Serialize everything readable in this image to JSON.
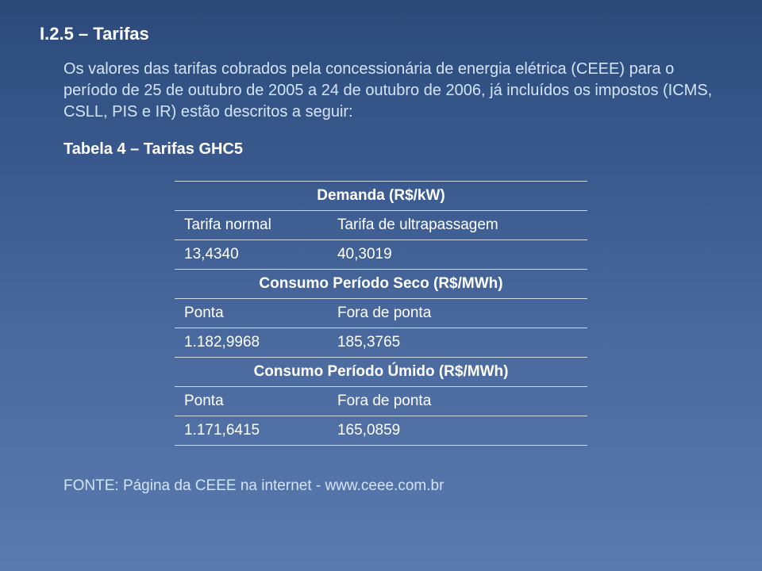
{
  "heading": "I.2.5 – Tarifas",
  "paragraph": "Os valores das tarifas cobrados pela concessionária de energia elétrica (CEEE) para o período de 25 de outubro de 2005 a 24 de outubro de 2006, já incluídos os impostos (ICMS, CSLL, PIS e IR) estão descritos a seguir:",
  "table_caption": "Tabela 4 – Tarifas GHC5",
  "sections": {
    "demanda": {
      "title": "Demanda (R$/kW)",
      "left_label": "Tarifa normal",
      "right_label": "Tarifa de ultrapassagem",
      "left_value": "13,4340",
      "right_value": "40,3019"
    },
    "seco": {
      "title": "Consumo Período Seco (R$/MWh)",
      "left_label": "Ponta",
      "right_label": "Fora de ponta",
      "left_value": "1.182,9968",
      "right_value": "185,3765"
    },
    "umido": {
      "title": "Consumo Período Úmido (R$/MWh)",
      "left_label": "Ponta",
      "right_label": "Fora de ponta",
      "left_value": "1.171,6415",
      "right_value": "165,0859"
    }
  },
  "footer": "FONTE: Página da CEEE na internet - www.ceee.com.br",
  "colors": {
    "bg_top": "#2b4a7a",
    "bg_bottom": "#5a7aaf",
    "text_body": "#d4e4f8",
    "text_heading": "#ffffff",
    "rule": "#cfd8e6"
  }
}
